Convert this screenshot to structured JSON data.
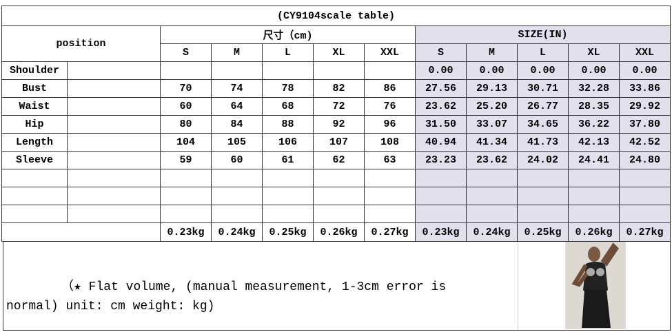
{
  "title": "(CY9104scale table)",
  "position_header": "position",
  "cm_header": "尺寸（cm)",
  "in_header": "SIZE(IN)",
  "sizes_cm": [
    "S",
    "M",
    "L",
    "XL",
    "XXL"
  ],
  "sizes_in": [
    "S",
    "M",
    "L",
    "XL",
    "XXL"
  ],
  "rows": [
    {
      "label": "Shoulder",
      "in": [
        "0.00",
        "0.00",
        "0.00",
        "0.00",
        "0.00"
      ]
    },
    {
      "label": "Bust",
      "cm": [
        "70",
        "74",
        "78",
        "82",
        "86"
      ],
      "in": [
        "27.56",
        "29.13",
        "30.71",
        "32.28",
        "33.86"
      ]
    },
    {
      "label": "Waist",
      "cm": [
        "60",
        "64",
        "68",
        "72",
        "76"
      ],
      "in": [
        "23.62",
        "25.20",
        "26.77",
        "28.35",
        "29.92"
      ]
    },
    {
      "label": "Hip",
      "cm": [
        "80",
        "84",
        "88",
        "92",
        "96"
      ],
      "in": [
        "31.50",
        "33.07",
        "34.65",
        "36.22",
        "37.80"
      ]
    },
    {
      "label": "Length",
      "cm": [
        "104",
        "105",
        "106",
        "107",
        "108"
      ],
      "in": [
        "40.94",
        "41.34",
        "41.73",
        "42.13",
        "42.52"
      ]
    },
    {
      "label": "Sleeve",
      "cm": [
        "59",
        "60",
        "61",
        "62",
        "63"
      ],
      "in": [
        "23.23",
        "23.62",
        "24.02",
        "24.41",
        "24.80"
      ]
    }
  ],
  "weights_cm": [
    "0.23kg",
    "0.24kg",
    "0.25kg",
    "0.26kg",
    "0.27kg"
  ],
  "weights_in": [
    "0.23kg",
    "0.24kg",
    "0.25kg",
    "0.26kg",
    "0.27kg"
  ],
  "note_line1": "（★ Flat volume, (manual measurement, 1-3cm error is",
  "note_line2": "normal) unit: cm weight: kg)"
}
